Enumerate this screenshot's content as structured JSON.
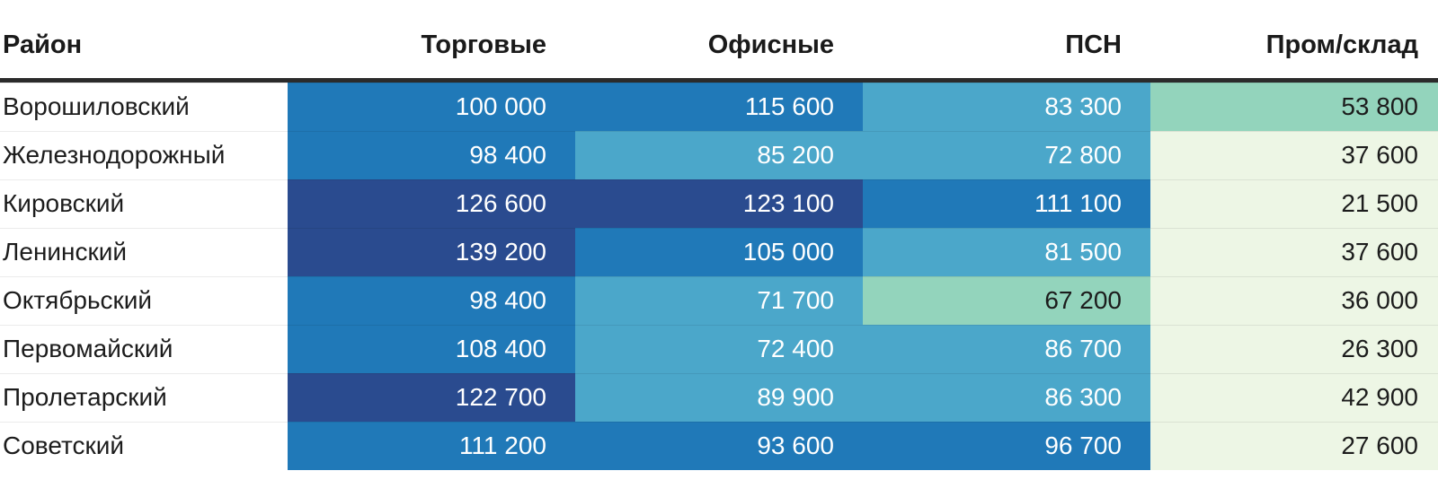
{
  "header": {
    "columns": [
      {
        "id": "district",
        "label": "Район"
      },
      {
        "id": "retail",
        "label": "Торговые"
      },
      {
        "id": "office",
        "label": "Офисные"
      },
      {
        "id": "psn",
        "label": "ПСН"
      },
      {
        "id": "industrial",
        "label": "Пром/склад"
      }
    ]
  },
  "palette": {
    "bucket_colors": {
      "navy": "#2a4b8f",
      "blue": "#2079b8",
      "lightblue": "#4ba7ca",
      "green": "#93d4bc",
      "pale": "#edf6e5"
    },
    "dark_text_buckets": [
      "green",
      "pale"
    ],
    "text_on_dark": "#ffffff",
    "text_on_light": "#1c1c1c",
    "header_border": "#2b2b2b"
  },
  "table": {
    "rows": [
      {
        "district": "Ворошиловский",
        "cells": [
          {
            "display": "100 000",
            "bucket": "blue"
          },
          {
            "display": "115 600",
            "bucket": "blue"
          },
          {
            "display": "83 300",
            "bucket": "lightblue"
          },
          {
            "display": "53 800",
            "bucket": "green"
          }
        ]
      },
      {
        "district": "Железнодорожный",
        "cells": [
          {
            "display": "98 400",
            "bucket": "blue"
          },
          {
            "display": "85 200",
            "bucket": "lightblue"
          },
          {
            "display": "72 800",
            "bucket": "lightblue"
          },
          {
            "display": "37 600",
            "bucket": "pale"
          }
        ]
      },
      {
        "district": "Кировский",
        "cells": [
          {
            "display": "126 600",
            "bucket": "navy"
          },
          {
            "display": "123 100",
            "bucket": "navy"
          },
          {
            "display": "111 100",
            "bucket": "blue"
          },
          {
            "display": "21 500",
            "bucket": "pale"
          }
        ]
      },
      {
        "district": "Ленинский",
        "cells": [
          {
            "display": "139 200",
            "bucket": "navy"
          },
          {
            "display": "105 000",
            "bucket": "blue"
          },
          {
            "display": "81 500",
            "bucket": "lightblue"
          },
          {
            "display": "37 600",
            "bucket": "pale"
          }
        ]
      },
      {
        "district": "Октябрьский",
        "cells": [
          {
            "display": "98 400",
            "bucket": "blue"
          },
          {
            "display": "71 700",
            "bucket": "lightblue"
          },
          {
            "display": "67 200",
            "bucket": "green"
          },
          {
            "display": "36 000",
            "bucket": "pale"
          }
        ]
      },
      {
        "district": "Первомайский",
        "cells": [
          {
            "display": "108 400",
            "bucket": "blue"
          },
          {
            "display": "72 400",
            "bucket": "lightblue"
          },
          {
            "display": "86 700",
            "bucket": "lightblue"
          },
          {
            "display": "26 300",
            "bucket": "pale"
          }
        ]
      },
      {
        "district": "Пролетарский",
        "cells": [
          {
            "display": "122 700",
            "bucket": "navy"
          },
          {
            "display": "89 900",
            "bucket": "lightblue"
          },
          {
            "display": "86 300",
            "bucket": "lightblue"
          },
          {
            "display": "42 900",
            "bucket": "pale"
          }
        ]
      },
      {
        "district": "Советский",
        "cells": [
          {
            "display": "111 200",
            "bucket": "blue"
          },
          {
            "display": "93 600",
            "bucket": "blue"
          },
          {
            "display": "96 700",
            "bucket": "blue"
          },
          {
            "display": "27 600",
            "bucket": "pale"
          }
        ]
      }
    ]
  },
  "chart_data": {
    "type": "heatmap",
    "row_header_label": "Район",
    "columns": [
      "Торговые",
      "Офисные",
      "ПСН",
      "Пром/склад"
    ],
    "rows": [
      "Ворошиловский",
      "Железнодорожный",
      "Кировский",
      "Ленинский",
      "Октябрьский",
      "Первомайский",
      "Пролетарский",
      "Советский"
    ],
    "values": [
      [
        100000,
        115600,
        83300,
        53800
      ],
      [
        98400,
        85200,
        72800,
        37600
      ],
      [
        126600,
        123100,
        111100,
        21500
      ],
      [
        139200,
        105000,
        81500,
        37600
      ],
      [
        98400,
        71700,
        67200,
        36000
      ],
      [
        108400,
        72400,
        86700,
        26300
      ],
      [
        122700,
        89900,
        86300,
        42900
      ],
      [
        111200,
        93600,
        96700,
        27600
      ]
    ],
    "value_range": [
      21500,
      139200
    ],
    "color_scale_order": [
      "pale",
      "green",
      "lightblue",
      "blue",
      "navy"
    ],
    "legend": "none",
    "grid": "off"
  }
}
